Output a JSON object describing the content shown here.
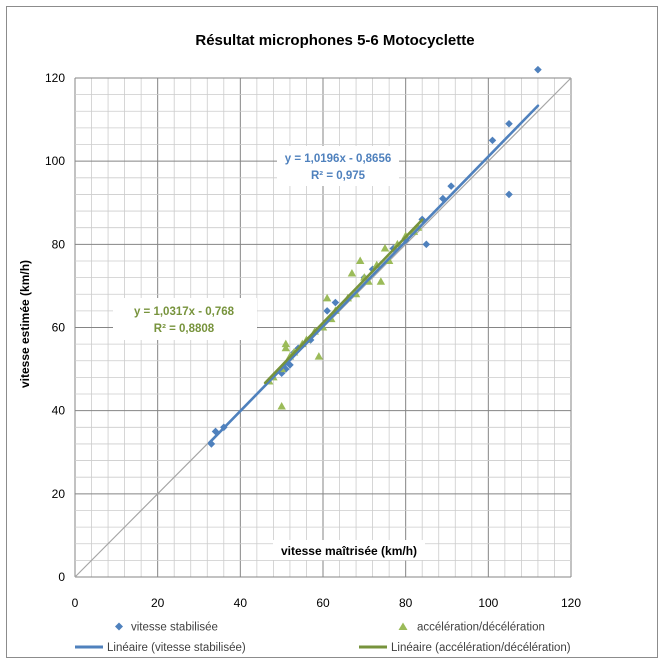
{
  "chart_data": {
    "type": "scatter",
    "title": "Résultat microphones 5-6 Motocyclette",
    "xlabel": "vitesse maîtrisée (km/h)",
    "ylabel": "vitesse estimée (km/h)",
    "xlim": [
      0,
      120
    ],
    "ylim": [
      0,
      120
    ],
    "x_ticks": [
      "0",
      "20",
      "40",
      "60",
      "80",
      "100",
      "120"
    ],
    "y_ticks": [
      "0",
      "20",
      "40",
      "60",
      "80",
      "100",
      "120"
    ],
    "grid": true,
    "legend_position": "bottom",
    "reference_line": {
      "slope": 1,
      "intercept": 0,
      "color": "#a6a6a6"
    },
    "series": [
      {
        "name": "vitesse stabilisée",
        "marker": "diamond",
        "color": "#4f81bd",
        "points": [
          [
            33,
            32
          ],
          [
            34,
            35
          ],
          [
            36,
            36
          ],
          [
            50,
            49
          ],
          [
            51,
            50
          ],
          [
            52,
            51
          ],
          [
            53,
            54
          ],
          [
            54,
            55
          ],
          [
            57,
            57
          ],
          [
            61,
            64
          ],
          [
            63,
            66
          ],
          [
            70,
            72
          ],
          [
            72,
            74
          ],
          [
            77,
            79
          ],
          [
            80,
            81
          ],
          [
            84,
            86
          ],
          [
            85,
            80
          ],
          [
            89,
            91
          ],
          [
            91,
            94
          ],
          [
            101,
            105
          ],
          [
            105,
            109
          ],
          [
            105,
            92
          ],
          [
            112,
            122
          ]
        ]
      },
      {
        "name": "accélération/décélération",
        "marker": "triangle",
        "color": "#9bbb59",
        "points": [
          [
            47,
            47
          ],
          [
            48,
            48
          ],
          [
            50,
            41
          ],
          [
            50,
            50
          ],
          [
            51,
            56
          ],
          [
            51,
            55
          ],
          [
            52,
            53
          ],
          [
            53,
            54
          ],
          [
            55,
            56
          ],
          [
            56,
            57
          ],
          [
            58,
            59
          ],
          [
            59,
            53
          ],
          [
            60,
            60
          ],
          [
            61,
            67
          ],
          [
            62,
            62
          ],
          [
            63,
            64
          ],
          [
            66,
            67
          ],
          [
            67,
            73
          ],
          [
            68,
            68
          ],
          [
            69,
            76
          ],
          [
            70,
            72
          ],
          [
            71,
            71
          ],
          [
            73,
            75
          ],
          [
            74,
            71
          ],
          [
            75,
            79
          ],
          [
            76,
            76
          ],
          [
            78,
            80
          ],
          [
            80,
            82
          ],
          [
            82,
            83
          ],
          [
            83,
            84
          ]
        ]
      }
    ],
    "trendlines": [
      {
        "name": "Linéaire (vitesse stabilisée)",
        "color": "#4f81bd",
        "slope": 1.0196,
        "intercept": -0.8656,
        "x_range": [
          32.5,
          112
        ],
        "equation": "y = 1,0196x - 0,8656",
        "r2": "R² = 0,975"
      },
      {
        "name": "Linéaire (accélération/décélération)",
        "color": "#77933c",
        "slope": 1.0317,
        "intercept": -0.768,
        "x_range": [
          46,
          84
        ],
        "equation": "y = 1,0317x - 0,768",
        "r2": "R² = 0,8808"
      }
    ],
    "legend": [
      {
        "label": "vitesse stabilisée",
        "kind": "diamond",
        "color": "#4f81bd"
      },
      {
        "label": "accélération/décélération",
        "kind": "triangle",
        "color": "#9bbb59"
      },
      {
        "label": "Linéaire (vitesse stabilisée)",
        "kind": "line",
        "color": "#4f81bd"
      },
      {
        "label": "Linéaire (accélération/décélération)",
        "kind": "line",
        "color": "#77933c"
      }
    ]
  }
}
